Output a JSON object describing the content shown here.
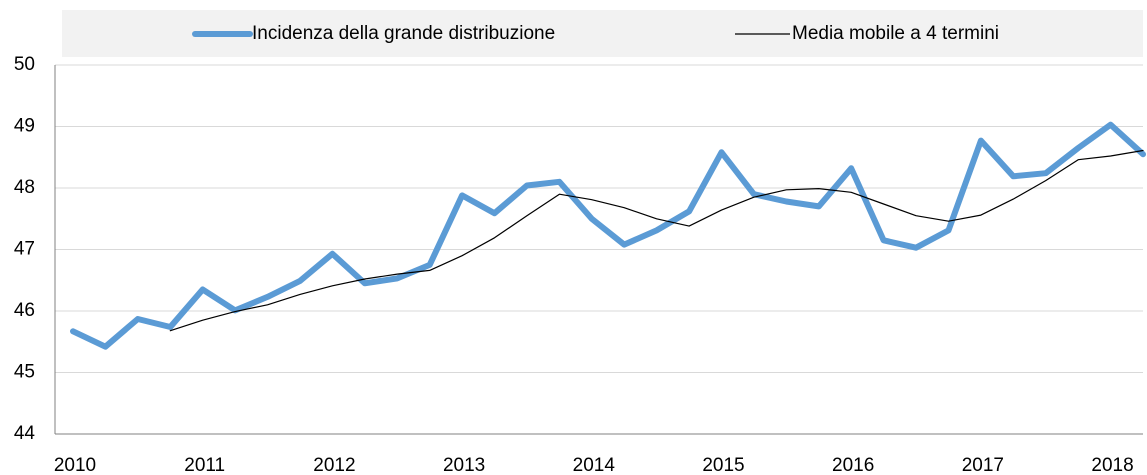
{
  "chart_data": {
    "type": "line",
    "categories": [
      "2010",
      null,
      null,
      null,
      "2011",
      null,
      null,
      null,
      "2012",
      null,
      null,
      null,
      "2013",
      null,
      null,
      null,
      "2014",
      null,
      null,
      null,
      "2015",
      null,
      null,
      null,
      "2016",
      null,
      null,
      null,
      "2017",
      null,
      null,
      null,
      "2018",
      null
    ],
    "series": [
      {
        "name": "Incidenza della grande distribuzione",
        "color": "#5b9bd5",
        "values": [
          45.67,
          45.42,
          45.87,
          45.74,
          46.35,
          46.01,
          46.23,
          46.49,
          46.93,
          46.45,
          46.53,
          46.75,
          47.88,
          47.59,
          48.04,
          48.1,
          47.5,
          47.08,
          47.31,
          47.62,
          48.58,
          47.9,
          47.78,
          47.7,
          48.32,
          47.15,
          47.03,
          47.31,
          48.77,
          48.19,
          48.24,
          48.65,
          49.03,
          48.55
        ]
      },
      {
        "name": "Media mobile a 4 termini",
        "color": "#000000",
        "values": [
          null,
          null,
          null,
          45.68,
          45.85,
          45.99,
          46.1,
          46.27,
          46.41,
          46.52,
          46.6,
          46.66,
          46.9,
          47.19,
          47.55,
          47.9,
          47.81,
          47.68,
          47.5,
          47.38,
          47.64,
          47.85,
          47.97,
          47.99,
          47.93,
          47.74,
          47.55,
          47.46,
          47.56,
          47.82,
          48.12,
          48.46,
          48.52,
          48.61
        ]
      }
    ],
    "ylim": [
      44,
      50
    ],
    "yticks": [
      44,
      45,
      46,
      47,
      48,
      49,
      50
    ],
    "grid": true,
    "legend": "top"
  }
}
